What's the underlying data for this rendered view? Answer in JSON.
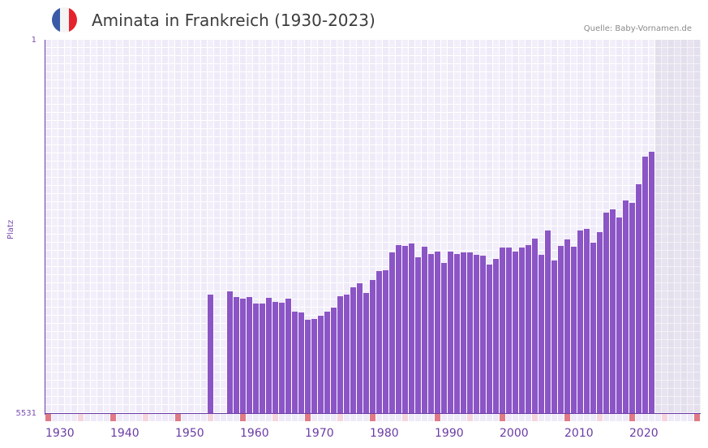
{
  "header": {
    "title": "Aminata in Frankreich (1930-2023)",
    "source": "Quelle: Baby-Vornamen.de",
    "flag": {
      "name": "france-flag-icon",
      "colors": [
        "#3a5aa8",
        "#f4f4f4",
        "#e4232d"
      ]
    }
  },
  "colors": {
    "bar": "#8b55c6",
    "axis": "#6a3ca4",
    "decade_marker": "#e07a85",
    "half_decade_marker": "#f5d6dc",
    "future_shade": "#e3dfec"
  },
  "chart_data": {
    "type": "bar",
    "title": "Aminata in Frankreich (1930-2023)",
    "xlabel": "",
    "ylabel": "Platz",
    "y_inverted": true,
    "ylim": [
      1,
      5531
    ],
    "xlim": [
      1930,
      2030
    ],
    "x_ticks": [
      "1930",
      "1940",
      "1950",
      "1960",
      "1970",
      "1980",
      "1990",
      "2000",
      "2010",
      "2020"
    ],
    "y_ticks": [
      "1",
      "5531"
    ],
    "grid": true,
    "future_shaded_from": 2024,
    "categories": [
      1955,
      1958,
      1959,
      1960,
      1961,
      1962,
      1963,
      1964,
      1965,
      1966,
      1967,
      1968,
      1969,
      1970,
      1971,
      1972,
      1973,
      1974,
      1975,
      1976,
      1977,
      1978,
      1979,
      1980,
      1981,
      1982,
      1983,
      1984,
      1985,
      1986,
      1987,
      1988,
      1989,
      1990,
      1991,
      1992,
      1993,
      1994,
      1995,
      1996,
      1997,
      1998,
      1999,
      2000,
      2001,
      2002,
      2003,
      2004,
      2005,
      2006,
      2007,
      2008,
      2009,
      2010,
      2011,
      2012,
      2013,
      2014,
      2015,
      2016,
      2017,
      2018,
      2019,
      2020,
      2021,
      2022,
      2023
    ],
    "values": [
      3764,
      3716,
      3800,
      3824,
      3800,
      3896,
      3896,
      3812,
      3872,
      3884,
      3824,
      4016,
      4028,
      4136,
      4124,
      4076,
      4016,
      3956,
      3788,
      3764,
      3656,
      3596,
      3740,
      3547,
      3415,
      3403,
      3139,
      3030,
      3042,
      3006,
      3210,
      3054,
      3163,
      3126,
      3294,
      3126,
      3163,
      3139,
      3139,
      3174,
      3186,
      3319,
      3235,
      3066,
      3066,
      3126,
      3066,
      3030,
      2934,
      3174,
      2814,
      3259,
      3042,
      2946,
      3054,
      2814,
      2790,
      2994,
      2838,
      2561,
      2513,
      2633,
      2381,
      2417,
      2141,
      1732,
      1660
    ]
  }
}
